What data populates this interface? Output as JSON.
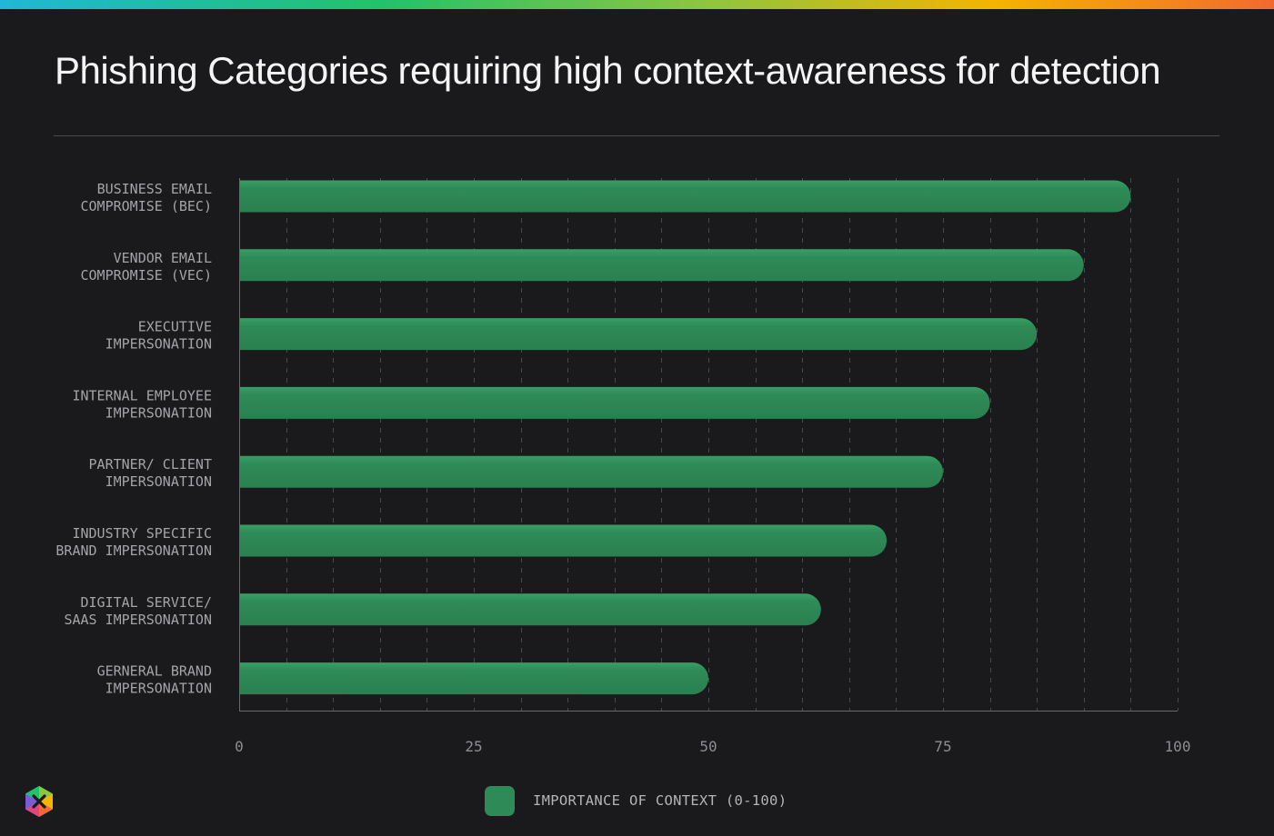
{
  "colors": {
    "background": "#1a1a1c",
    "bar": "#2e8b57",
    "bar_highlight": "#3fa56b",
    "grid": "#4a4a4e",
    "axis": "#6a6a6e",
    "title": "#f4f4f4",
    "top_gradient": [
      "#1fb8d8",
      "#22c26a",
      "#8cc63f",
      "#f5b400",
      "#f26a2e"
    ]
  },
  "icons": {
    "brand_logo": "hexagon-logo-icon"
  },
  "chart_data": {
    "type": "bar",
    "orientation": "horizontal",
    "title": "Phishing Categories requiring high context-awareness for detection",
    "categories": [
      "BUSINESS EMAIL COMPROMISE (BEC)",
      "VENDOR EMAIL COMPROMISE (VEC)",
      "EXECUTIVE IMPERSONATION",
      "INTERNAL EMPLOYEE IMPERSONATION",
      "PARTNER/ CLIENT IMPERSONATION",
      "INDUSTRY SPECIFIC BRAND IMPERSONATION",
      "DIGITAL SERVICE/ SAAS IMPERSONATION",
      "GERNERAL BRAND IMPERSONATION"
    ],
    "category_lines": [
      [
        "BUSINESS EMAIL",
        "COMPROMISE (BEC)"
      ],
      [
        "VENDOR EMAIL",
        "COMPROMISE (VEC)"
      ],
      [
        "EXECUTIVE",
        "IMPERSONATION"
      ],
      [
        "INTERNAL EMPLOYEE",
        "IMPERSONATION"
      ],
      [
        "PARTNER/ CLIENT",
        "IMPERSONATION"
      ],
      [
        "INDUSTRY SPECIFIC",
        "BRAND IMPERSONATION"
      ],
      [
        "DIGITAL SERVICE/",
        "SAAS IMPERSONATION"
      ],
      [
        "GERNERAL BRAND",
        "IMPERSONATION"
      ]
    ],
    "series": [
      {
        "name": "IMPORTANCE OF CONTEXT (0-100)",
        "values": [
          95,
          90,
          85,
          80,
          75,
          69,
          62,
          50
        ]
      }
    ],
    "xlim": [
      0,
      100
    ],
    "xticks": [
      0,
      25,
      50,
      75,
      100
    ],
    "xtick_labels": [
      "0",
      "25",
      "50",
      "75",
      "100"
    ],
    "minor_grid_step": 5,
    "grid": true,
    "xlabel": "",
    "ylabel": "",
    "legend": {
      "position": "bottom-center",
      "label": "IMPORTANCE OF CONTEXT (0-100)"
    }
  }
}
